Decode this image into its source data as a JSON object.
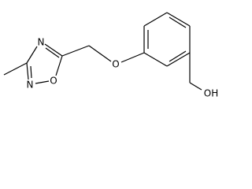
{
  "atoms": [
    {
      "label": "N"
    },
    {
      "label": "N"
    },
    {
      "label": "O"
    },
    {
      "label": "O"
    },
    {
      "label": "OH"
    }
  ]
}
